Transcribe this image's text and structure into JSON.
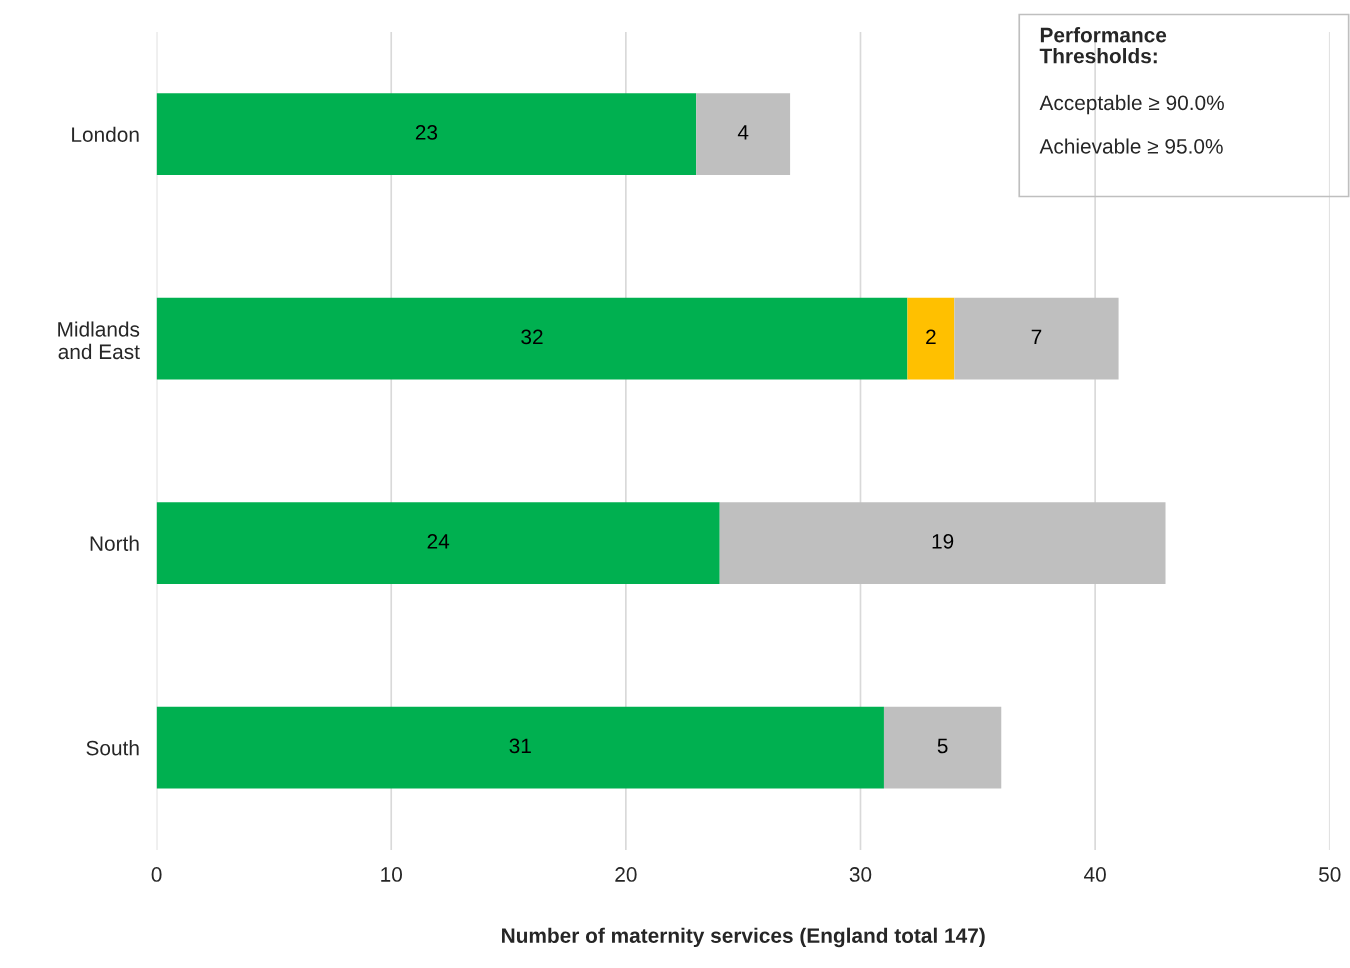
{
  "chart_data": {
    "type": "bar",
    "orientation": "horizontal",
    "stacked": true,
    "categories": [
      "London",
      "Midlands\nand East",
      "North",
      "South"
    ],
    "series": [
      {
        "color": "#00b050",
        "values": [
          23,
          32,
          24,
          31
        ]
      },
      {
        "color": "#ffc000",
        "values": [
          null,
          2,
          null,
          null
        ]
      },
      {
        "color": "#bfbfbf",
        "values": [
          4,
          7,
          19,
          5
        ]
      }
    ],
    "xlabel": "Number of maternity services (England total 147)",
    "xlim": [
      0,
      50
    ],
    "xticks": [
      0,
      10,
      20,
      30,
      40,
      50
    ],
    "grid": "x",
    "data_labels": true,
    "legend": false,
    "annotations": [
      "Performance\nThresholds:",
      "Acceptable ≥ 90.0%",
      "Achievable ≥ 95.0%"
    ]
  }
}
